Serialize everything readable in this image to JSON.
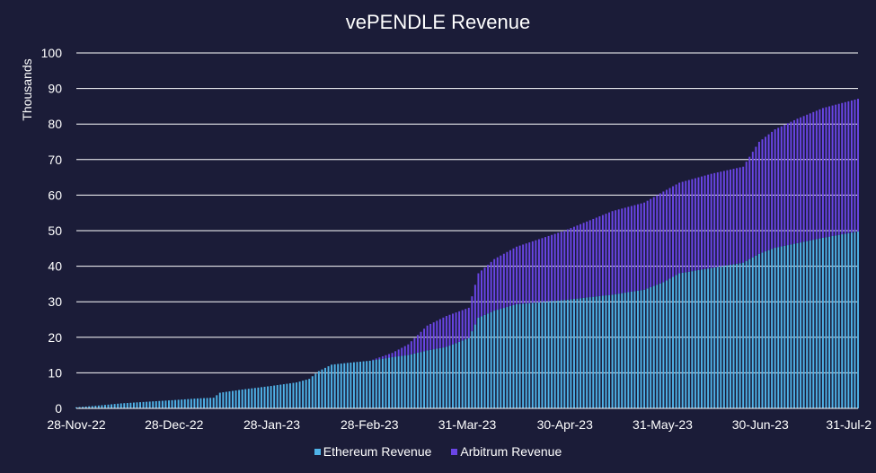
{
  "chart_data": {
    "type": "bar",
    "stacked": true,
    "title": "vePENDLE Revenue",
    "ylabel": "Thousands",
    "xlabel": "",
    "ylim": [
      0,
      100
    ],
    "yticks": [
      0,
      10,
      20,
      30,
      40,
      50,
      60,
      70,
      80,
      90,
      100
    ],
    "grid": true,
    "legend_position": "bottom",
    "x_tick_labels": [
      "28-Nov-22",
      "28-Dec-22",
      "28-Jan-23",
      "28-Feb-23",
      "31-Mar-23",
      "30-Apr-23",
      "31-May-23",
      "30-Jun-23",
      "31-Jul-2"
    ],
    "x_start": "2022-11-28",
    "x_end": "2023-07-31",
    "series": [
      {
        "name": "Ethereum Revenue",
        "color": "#4fb3e8",
        "points": [
          [
            "2022-11-28",
            0.3
          ],
          [
            "2022-12-05",
            0.8
          ],
          [
            "2022-12-12",
            1.4
          ],
          [
            "2022-12-19",
            1.8
          ],
          [
            "2022-12-28",
            2.3
          ],
          [
            "2023-01-05",
            2.8
          ],
          [
            "2023-01-10",
            3.0
          ],
          [
            "2023-01-12",
            4.4
          ],
          [
            "2023-01-19",
            5.3
          ],
          [
            "2023-01-28",
            6.3
          ],
          [
            "2023-02-05",
            7.3
          ],
          [
            "2023-02-09",
            8.3
          ],
          [
            "2023-02-12",
            10.5
          ],
          [
            "2023-02-16",
            12.3
          ],
          [
            "2023-02-21",
            12.8
          ],
          [
            "2023-02-28",
            13.4
          ],
          [
            "2023-03-07",
            14.4
          ],
          [
            "2023-03-12",
            15.0
          ],
          [
            "2023-03-18",
            16.3
          ],
          [
            "2023-03-24",
            17.3
          ],
          [
            "2023-03-31",
            19.8
          ],
          [
            "2023-04-03",
            25.5
          ],
          [
            "2023-04-08",
            27.5
          ],
          [
            "2023-04-15",
            29.3
          ],
          [
            "2023-04-30",
            30.5
          ],
          [
            "2023-05-15",
            32.0
          ],
          [
            "2023-05-25",
            33.4
          ],
          [
            "2023-05-31",
            35.5
          ],
          [
            "2023-06-05",
            38.0
          ],
          [
            "2023-06-15",
            39.5
          ],
          [
            "2023-06-25",
            41.0
          ],
          [
            "2023-06-30",
            43.5
          ],
          [
            "2023-07-05",
            45.2
          ],
          [
            "2023-07-12",
            46.5
          ],
          [
            "2023-07-20",
            48.0
          ],
          [
            "2023-07-31",
            49.8
          ]
        ]
      },
      {
        "name": "Arbitrum Revenue",
        "color": "#6a45e6",
        "points": [
          [
            "2022-11-28",
            0
          ],
          [
            "2023-02-28",
            0
          ],
          [
            "2023-03-07",
            1.2
          ],
          [
            "2023-03-12",
            3.0
          ],
          [
            "2023-03-18",
            7.0
          ],
          [
            "2023-03-24",
            8.7
          ],
          [
            "2023-03-31",
            8.5
          ],
          [
            "2023-04-03",
            12.5
          ],
          [
            "2023-04-08",
            14.5
          ],
          [
            "2023-04-15",
            16.2
          ],
          [
            "2023-04-30",
            19.5
          ],
          [
            "2023-05-15",
            23.5
          ],
          [
            "2023-05-25",
            24.5
          ],
          [
            "2023-05-31",
            25.5
          ],
          [
            "2023-06-05",
            25.5
          ],
          [
            "2023-06-15",
            26.5
          ],
          [
            "2023-06-25",
            27.0
          ],
          [
            "2023-06-30",
            31.5
          ],
          [
            "2023-07-05",
            33.3
          ],
          [
            "2023-07-12",
            35.0
          ],
          [
            "2023-07-20",
            36.5
          ],
          [
            "2023-07-31",
            37.3
          ]
        ]
      }
    ]
  }
}
